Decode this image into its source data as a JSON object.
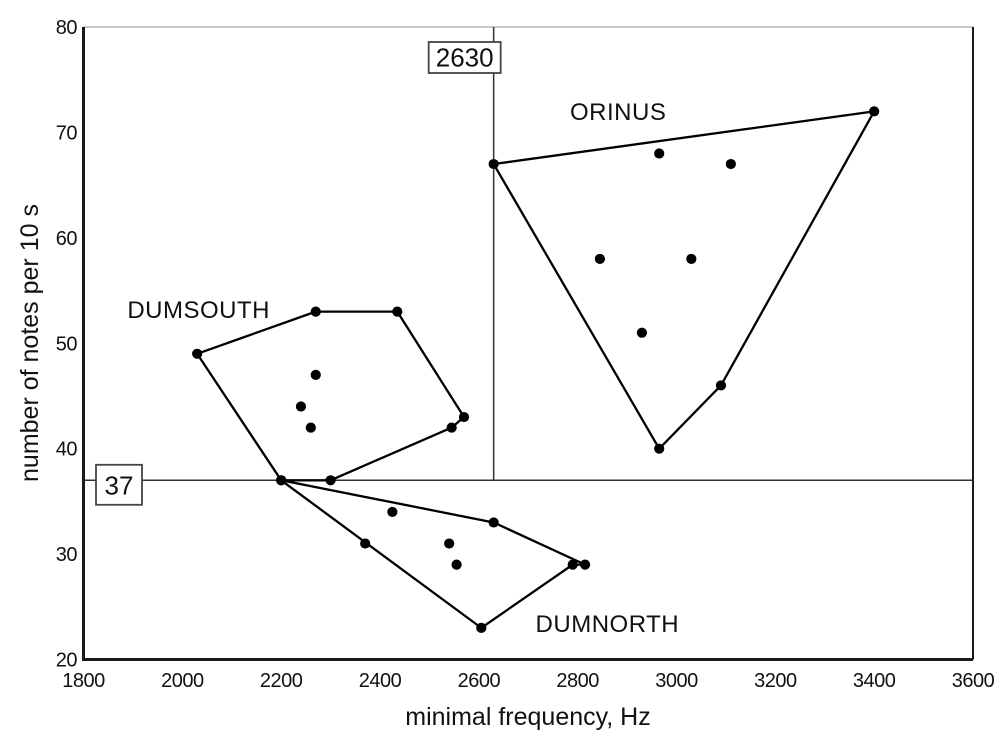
{
  "chart_data": {
    "type": "scatter",
    "title": "",
    "xlabel": "minimal frequency, Hz",
    "ylabel": "number of notes per 10 s",
    "xlim": [
      1800,
      3600
    ],
    "ylim": [
      20,
      80
    ],
    "x_ticks": [
      1800,
      2000,
      2200,
      2400,
      2600,
      2800,
      3000,
      3200,
      3400,
      3600
    ],
    "y_ticks": [
      20,
      30,
      40,
      50,
      60,
      70,
      80
    ],
    "grid": false,
    "legend": "none",
    "colors": {
      "background": "#ffffff",
      "axis": "#1a1a1a",
      "top_border": "#c9c9c9",
      "marker": "#000000",
      "hull_line": "#000000",
      "reference_line": "#333333",
      "box_border": "#444444",
      "box_fill": "#ffffff",
      "text": "#111111"
    },
    "reference_lines": [
      {
        "axis": "x",
        "value": 2630,
        "label": "2630"
      },
      {
        "axis": "y",
        "value": 37,
        "label": "37"
      }
    ],
    "series": [
      {
        "name": "DUMSOUTH",
        "label_anchor": {
          "x": 2033,
          "y": 53.2
        },
        "points": [
          [
            2030,
            49
          ],
          [
            2270,
            53
          ],
          [
            2435,
            53
          ],
          [
            2570,
            43
          ],
          [
            2545,
            42
          ],
          [
            2300,
            37
          ],
          [
            2200,
            37
          ],
          [
            2270,
            47
          ],
          [
            2240,
            44
          ],
          [
            2260,
            42
          ]
        ],
        "hull": [
          [
            2030,
            49
          ],
          [
            2270,
            53
          ],
          [
            2435,
            53
          ],
          [
            2570,
            43
          ],
          [
            2545,
            42
          ],
          [
            2300,
            37
          ],
          [
            2200,
            37
          ]
        ]
      },
      {
        "name": "ORINUS",
        "label_anchor": {
          "x": 2882,
          "y": 72
        },
        "points": [
          [
            2630,
            67
          ],
          [
            2965,
            68
          ],
          [
            3110,
            67
          ],
          [
            3400,
            72
          ],
          [
            2845,
            58
          ],
          [
            3030,
            58
          ],
          [
            2930,
            51
          ],
          [
            3090,
            46
          ],
          [
            2965,
            40
          ]
        ],
        "hull": [
          [
            2630,
            67
          ],
          [
            3400,
            72
          ],
          [
            3090,
            46
          ],
          [
            2965,
            40
          ]
        ]
      },
      {
        "name": "DUMNORTH",
        "label_anchor": {
          "x": 2860,
          "y": 23.4
        },
        "points": [
          [
            2200,
            37
          ],
          [
            2425,
            34
          ],
          [
            2630,
            33
          ],
          [
            2370,
            31
          ],
          [
            2540,
            31
          ],
          [
            2555,
            29
          ],
          [
            2790,
            29
          ],
          [
            2815,
            29
          ],
          [
            2605,
            23
          ]
        ],
        "hull": [
          [
            2200,
            37
          ],
          [
            2630,
            33
          ],
          [
            2815,
            29
          ],
          [
            2790,
            29
          ],
          [
            2605,
            23
          ]
        ]
      }
    ]
  }
}
